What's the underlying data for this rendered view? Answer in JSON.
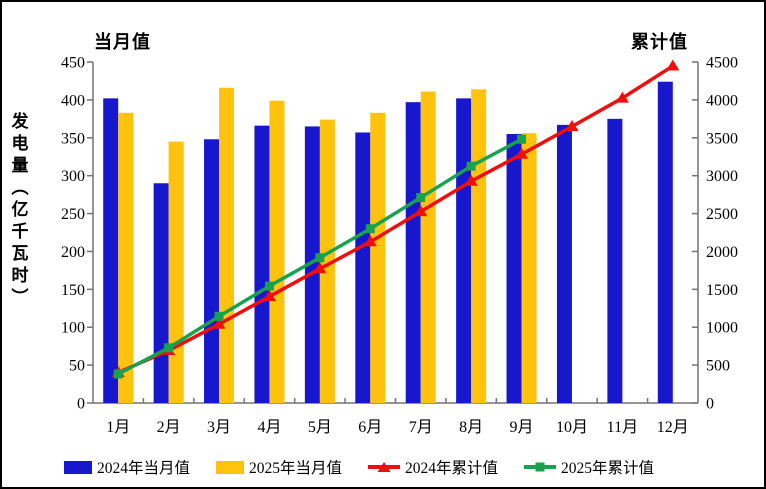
{
  "chart_data": {
    "type": "bar",
    "combo": "bars (monthly, left axis) + cumulative lines (right axis)",
    "categories": [
      "1月",
      "2月",
      "3月",
      "4月",
      "5月",
      "6月",
      "7月",
      "8月",
      "9月",
      "10月",
      "11月",
      "12月"
    ],
    "series": [
      {
        "name": "2024年当月值",
        "kind": "bar",
        "axis": "left",
        "color": "#1717CE",
        "values": [
          402,
          290,
          348,
          366,
          365,
          357,
          397,
          402,
          355,
          367,
          375,
          424
        ]
      },
      {
        "name": "2025年当月值",
        "kind": "bar",
        "axis": "left",
        "color": "#FFC30E",
        "values": [
          383,
          345,
          416,
          399,
          374,
          383,
          411,
          414,
          356
        ]
      },
      {
        "name": "2024年累计值",
        "kind": "line",
        "axis": "right",
        "color": "#F20D0D",
        "marker": "triangle",
        "values": [
          402,
          692,
          1040,
          1406,
          1771,
          2128,
          2525,
          2927,
          3282,
          3649,
          4024,
          4448
        ]
      },
      {
        "name": "2025年累计值",
        "kind": "line",
        "axis": "right",
        "color": "#17A24D",
        "marker": "square",
        "values": [
          383,
          728,
          1144,
          1543,
          1917,
          2300,
          2711,
          3125,
          3481
        ]
      }
    ],
    "left_axis": {
      "header": "当月值",
      "title": "发电量（亿千瓦时）",
      "min": 0,
      "max": 450,
      "step": 50
    },
    "right_axis": {
      "header": "累计值",
      "min": 0,
      "max": 4500,
      "step": 500
    },
    "legend_position": "bottom",
    "grid": "off",
    "axis_color": "#737373"
  }
}
